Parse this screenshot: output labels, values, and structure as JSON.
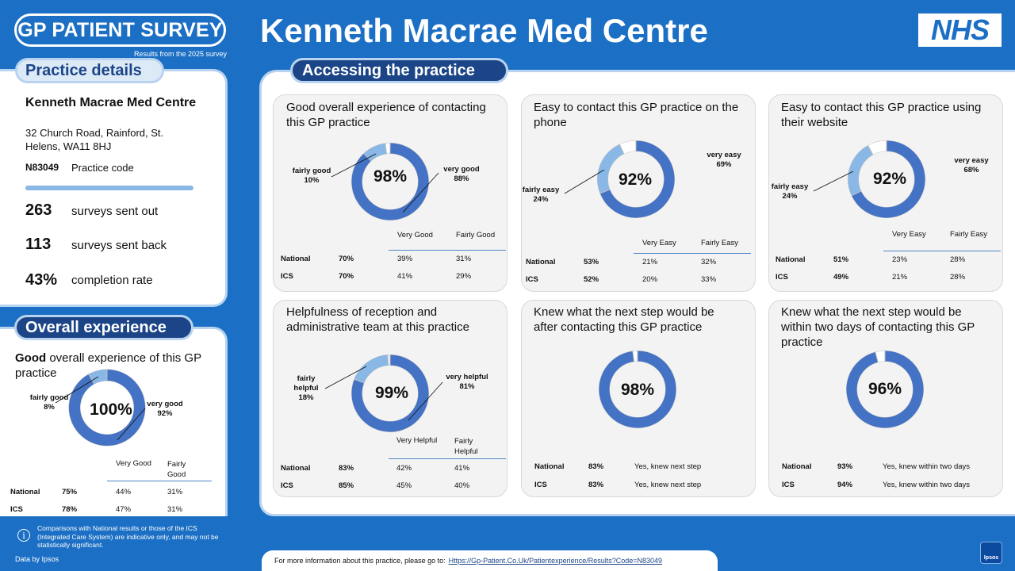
{
  "header": {
    "logo_text": "GP PATIENT SURVEY",
    "results_sub": "Results from the 2025 survey",
    "title": "Kenneth Macrae Med Centre",
    "nhs": "NHS"
  },
  "practice": {
    "tab": "Practice details",
    "name": "Kenneth Macrae Med Centre",
    "address": "32 Church Road, Rainford, St. Helens, WA11 8HJ",
    "code": "N83049",
    "code_label": "Practice code",
    "stats": [
      {
        "value": "263",
        "label": "surveys sent out"
      },
      {
        "value": "113",
        "label": "surveys sent back"
      },
      {
        "value": "43%",
        "label": "completion rate"
      }
    ]
  },
  "overall": {
    "tab": "Overall experience",
    "title_bold": "Good",
    "title_rest": " overall experience of this GP practice",
    "donut": {
      "total": "100%",
      "primary_label": "very good",
      "primary_pct": "92%",
      "secondary_label": "fairly good",
      "secondary_pct": "8%",
      "primary": 92,
      "secondary": 8
    },
    "table": {
      "col1": "Very Good",
      "col2": "Fairly Good",
      "rows": [
        {
          "label": "National",
          "total": "75%",
          "c1": "44%",
          "c2": "31%"
        },
        {
          "label": "ICS",
          "total": "78%",
          "c1": "47%",
          "c2": "31%"
        }
      ]
    }
  },
  "access": {
    "tab": "Accessing the practice",
    "cards": [
      {
        "title": "Good overall experience of contacting this GP practice",
        "donut": {
          "total": "98%",
          "primary": 88,
          "secondary": 10,
          "primary_label": "very good",
          "primary_pct": "88%",
          "secondary_label": "fairly good",
          "secondary_pct": "10%"
        },
        "col1": "Very Good",
        "col2": "Fairly Good",
        "rows": [
          {
            "label": "National",
            "total": "70%",
            "c1": "39%",
            "c2": "31%"
          },
          {
            "label": "ICS",
            "total": "70%",
            "c1": "41%",
            "c2": "29%"
          }
        ]
      },
      {
        "title": "Easy to contact this GP practice on the phone",
        "donut": {
          "total": "92%",
          "primary": 69,
          "secondary": 24,
          "primary_label": "very easy",
          "primary_pct": "69%",
          "secondary_label": "fairly easy",
          "secondary_pct": "24%"
        },
        "col1": "Very Easy",
        "col2": "Fairly Easy",
        "rows": [
          {
            "label": "National",
            "total": "53%",
            "c1": "21%",
            "c2": "32%"
          },
          {
            "label": "ICS",
            "total": "52%",
            "c1": "20%",
            "c2": "33%"
          }
        ]
      },
      {
        "title": "Easy to contact this GP practice using their website",
        "donut": {
          "total": "92%",
          "primary": 68,
          "secondary": 24,
          "primary_label": "very easy",
          "primary_pct": "68%",
          "secondary_label": "fairly easy",
          "secondary_pct": "24%"
        },
        "col1": "Very Easy",
        "col2": "Fairly Easy",
        "rows": [
          {
            "label": "National",
            "total": "51%",
            "c1": "23%",
            "c2": "28%"
          },
          {
            "label": "ICS",
            "total": "49%",
            "c1": "21%",
            "c2": "28%"
          }
        ]
      },
      {
        "title": "Helpfulness of reception and administrative team at this practice",
        "donut": {
          "total": "99%",
          "primary": 81,
          "secondary": 18,
          "primary_label": "very helpful",
          "primary_pct": "81%",
          "secondary_label": "fairly helpful",
          "secondary_pct": "18%"
        },
        "col1": "Very Helpful",
        "col2": "Fairly Helpful",
        "rows": [
          {
            "label": "National",
            "total": "83%",
            "c1": "42%",
            "c2": "41%"
          },
          {
            "label": "ICS",
            "total": "85%",
            "c1": "45%",
            "c2": "40%"
          }
        ]
      },
      {
        "title": "Knew what the next step would be after contacting this GP practice",
        "donut": {
          "total": "98%",
          "primary": 98,
          "secondary": 0
        },
        "rows": [
          {
            "label": "National",
            "total": "83%",
            "desc": "Yes, knew next step"
          },
          {
            "label": "ICS",
            "total": "83%",
            "desc": "Yes, knew next step"
          }
        ]
      },
      {
        "title": "Knew what the next step would be within two days of contacting this GP practice",
        "donut": {
          "total": "96%",
          "primary": 96,
          "secondary": 0
        },
        "rows": [
          {
            "label": "National",
            "total": "93%",
            "desc": "Yes, knew within two days"
          },
          {
            "label": "ICS",
            "total": "94%",
            "desc": "Yes, knew within two days"
          }
        ]
      }
    ]
  },
  "footer": {
    "note": "Comparisons with National results or those of the ICS (Integrated Care System) are indicative only, and may not be statistically significant.",
    "data_by": "Data by Ipsos",
    "link_prefix": "For more information about this practice, please go to:",
    "link": "Https://Gp-Patient.Co.Uk/Patientexperience/Results?Code=N83049",
    "ipsos": "Ipsos"
  },
  "colors": {
    "dark": "#4472c4",
    "light": "#8ab8e6",
    "rest": "#ffffff",
    "edge": "#bfbfbf"
  }
}
